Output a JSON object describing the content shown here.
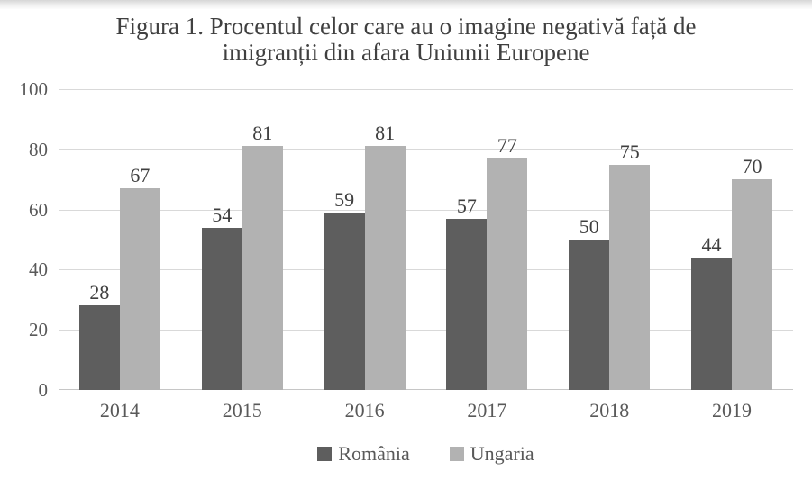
{
  "title": {
    "line1": "Figura 1. Procentul celor care au o imagine negativă față de",
    "line2": "imigranții din afara Uniunii Europene"
  },
  "chart_data": {
    "type": "bar",
    "title": "Figura 1. Procentul celor care au o imagine negativă față de imigranții din afara Uniunii Europene",
    "categories": [
      "2014",
      "2015",
      "2016",
      "2017",
      "2018",
      "2019"
    ],
    "series": [
      {
        "name": "România",
        "color": "#5e5e5e",
        "values": [
          28,
          54,
          59,
          57,
          50,
          44
        ]
      },
      {
        "name": "Ungaria",
        "color": "#b2b2b2",
        "values": [
          67,
          81,
          81,
          77,
          75,
          70
        ]
      }
    ],
    "xlabel": "",
    "ylabel": "",
    "ylim": [
      0,
      100
    ],
    "yticks": [
      0,
      20,
      40,
      60,
      80,
      100
    ],
    "grid": true,
    "value_labels": true,
    "legend_position": "bottom"
  },
  "colors": {
    "background": "#ffffff",
    "gridline": "#d9d9d9",
    "axis_line": "#c6c6c6",
    "axis_text": "#595959",
    "value_label_text": "#3f3f3f",
    "title_text": "#404040"
  }
}
